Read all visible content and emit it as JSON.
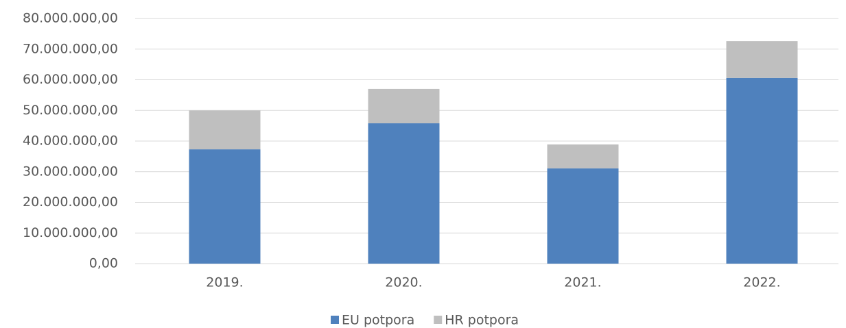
{
  "chart_data": {
    "type": "stacked_bar",
    "categories": [
      "2019.",
      "2020.",
      "2021.",
      "2022."
    ],
    "series": [
      {
        "name": "EU potpora",
        "color": "#4f81bd",
        "values": [
          37300000,
          45800000,
          31100000,
          60600000
        ]
      },
      {
        "name": "HR potpora",
        "color": "#bfbfbf",
        "values": [
          12700000,
          11200000,
          7800000,
          12000000
        ]
      }
    ],
    "ylim": [
      0,
      80000000
    ],
    "yticks": [
      {
        "value": 0,
        "label": "0,00"
      },
      {
        "value": 10000000,
        "label": "10.000.000,00"
      },
      {
        "value": 20000000,
        "label": "20.000.000,00"
      },
      {
        "value": 30000000,
        "label": "30.000.000,00"
      },
      {
        "value": 40000000,
        "label": "40.000.000,00"
      },
      {
        "value": 50000000,
        "label": "50.000.000,00"
      },
      {
        "value": 60000000,
        "label": "60.000.000,00"
      },
      {
        "value": 70000000,
        "label": "70.000.000,00"
      },
      {
        "value": 80000000,
        "label": "80.000.000,00"
      }
    ],
    "grid": true,
    "legend": "bottom"
  }
}
